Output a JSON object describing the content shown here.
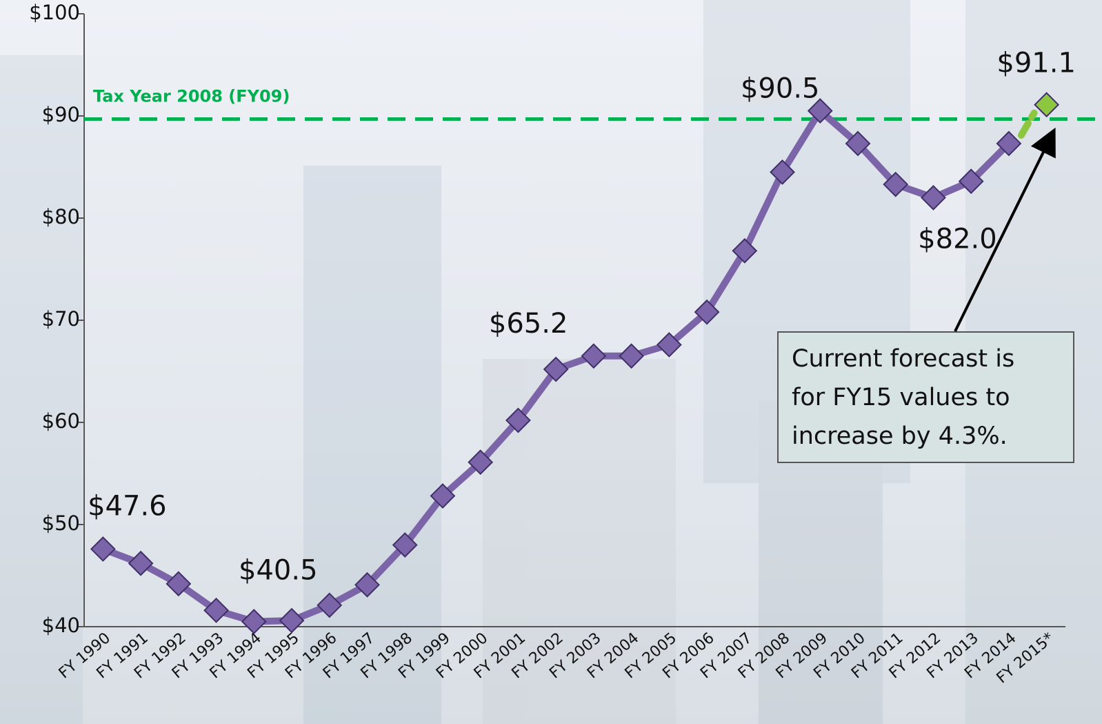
{
  "chart_data": {
    "type": "line",
    "categories": [
      "FY 1990",
      "FY 1991",
      "FY 1992",
      "FY 1993",
      "FY 1994",
      "FY 1995",
      "FY 1996",
      "FY 1997",
      "FY 1998",
      "FY 1999",
      "FY 2000",
      "FY 2001",
      "FY 2002",
      "FY 2003",
      "FY 2004",
      "FY 2005",
      "FY 2006",
      "FY 2007",
      "FY 2008",
      "FY 2009",
      "FY 2010",
      "FY 2011",
      "FY 2012",
      "FY 2013",
      "FY 2014",
      "FY 2015*"
    ],
    "series": [
      {
        "color": "#7b65a8",
        "values": [
          47.6,
          46.2,
          44.2,
          41.6,
          40.5,
          40.6,
          42.1,
          44.1,
          48.0,
          52.8,
          56.1,
          60.2,
          65.2,
          66.5,
          66.5,
          67.6,
          70.8,
          76.8,
          84.5,
          90.5,
          87.3,
          83.3,
          82.0,
          83.6,
          87.3,
          null
        ],
        "value_labels": [
          "$47.6",
          null,
          null,
          null,
          "$40.5",
          null,
          null,
          null,
          null,
          null,
          null,
          null,
          "$65.2",
          null,
          null,
          null,
          null,
          null,
          null,
          "$90.5",
          null,
          null,
          "$82.0",
          null,
          null,
          null
        ]
      },
      {
        "color": "#8dc63f",
        "values": [
          null,
          null,
          null,
          null,
          null,
          null,
          null,
          null,
          null,
          null,
          null,
          null,
          null,
          null,
          null,
          null,
          null,
          null,
          null,
          null,
          null,
          null,
          null,
          null,
          null,
          91.1
        ],
        "value_labels": [
          null,
          null,
          null,
          null,
          null,
          null,
          null,
          null,
          null,
          null,
          null,
          null,
          null,
          null,
          null,
          null,
          null,
          null,
          null,
          null,
          null,
          null,
          null,
          null,
          null,
          "$91.1"
        ]
      }
    ],
    "ylim": [
      40,
      100
    ],
    "yticks": [
      {
        "value": 40,
        "label": "$40"
      },
      {
        "value": 50,
        "label": "$50"
      },
      {
        "value": 60,
        "label": "$60"
      },
      {
        "value": 70,
        "label": "$70"
      },
      {
        "value": 80,
        "label": "$80"
      },
      {
        "value": 90,
        "label": "$90"
      },
      {
        "value": 100,
        "label": "$100"
      }
    ],
    "reference_line": {
      "value": 89.7,
      "label": "Tax Year 2008 (FY09)",
      "color": "#00b050"
    },
    "annotation": {
      "lines": [
        "Current forecast is",
        "for FY15 values to",
        "increase by 4.3%."
      ]
    }
  }
}
